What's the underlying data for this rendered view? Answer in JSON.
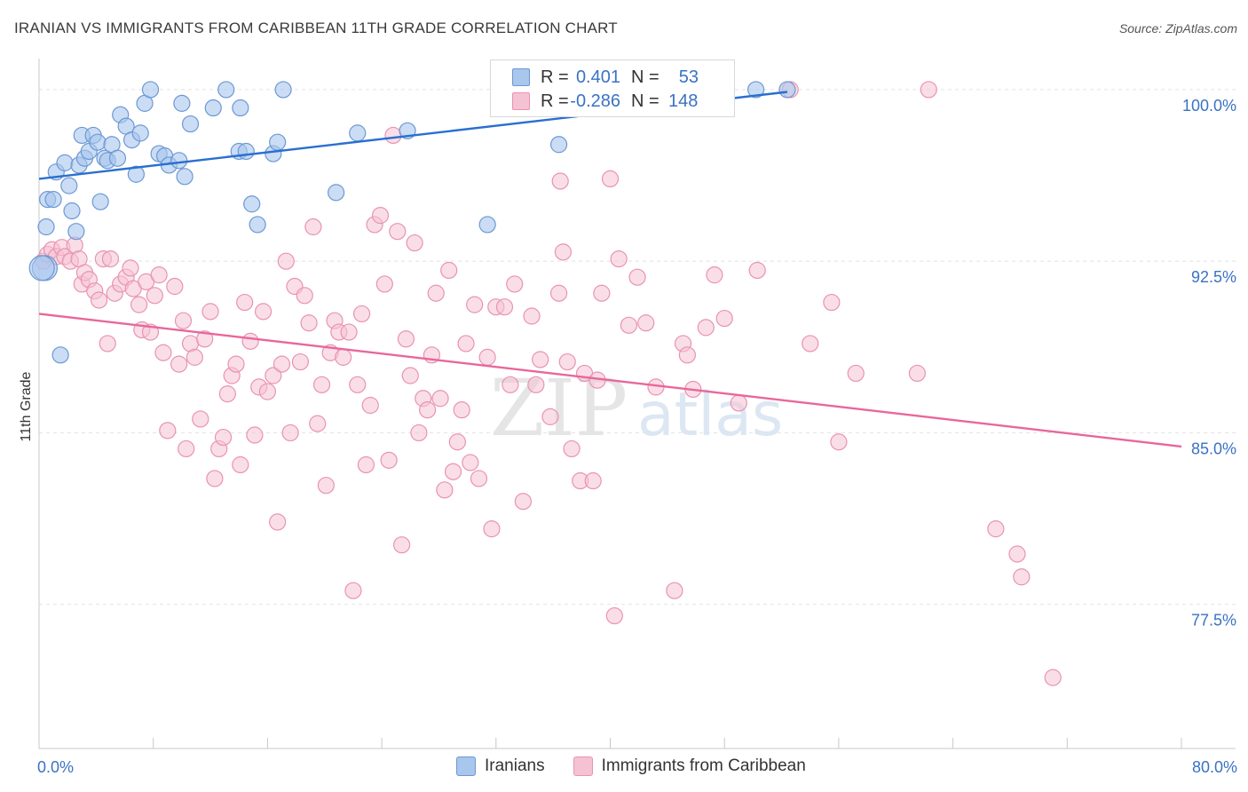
{
  "header": {
    "title": "IRANIAN VS IMMIGRANTS FROM CARIBBEAN 11TH GRADE CORRELATION CHART",
    "source": "Source: ZipAtlas.com"
  },
  "colors": {
    "blue_fill": "#a9c6ec",
    "blue_stroke": "#6c98d4",
    "blue_line": "#2a6fd0",
    "pink_fill": "#f5c2d3",
    "pink_stroke": "#e993b0",
    "pink_line": "#e8679a",
    "tick_label": "#3a72c4",
    "grid": "#e2e2e2"
  },
  "legend": {
    "rows": [
      {
        "r_label": "R =",
        "r_value": "0.401",
        "n_label": "N =",
        "n_value": "53"
      },
      {
        "r_label": "R =",
        "r_value": "-0.286",
        "n_label": "N =",
        "n_value": "148"
      }
    ]
  },
  "bottom_legend": {
    "items": [
      {
        "label": "Iranians"
      },
      {
        "label": "Immigrants from Caribbean"
      }
    ]
  },
  "watermark": {
    "part1": "ZIP",
    "part2": "atlas"
  },
  "chart_data": {
    "type": "scatter",
    "title": "IRANIAN VS IMMIGRANTS FROM CARIBBEAN 11TH GRADE CORRELATION CHART",
    "xlabel": "",
    "ylabel": "11th Grade",
    "xlim": [
      0,
      80
    ],
    "ylim": [
      71.2,
      101.2
    ],
    "x_tick_labels": [
      "0.0%",
      "80.0%"
    ],
    "y_ticks": [
      77.5,
      85.0,
      92.5,
      100.0
    ],
    "y_tick_labels": [
      "77.5%",
      "85.0%",
      "92.5%",
      "100.0%"
    ],
    "grid": true,
    "legend_position": "top-center",
    "series": [
      {
        "name": "Iranians",
        "r": 0.401,
        "n": 53,
        "trend": {
          "x": [
            0,
            52.4
          ],
          "y": [
            96.1,
            99.9
          ]
        },
        "points": [
          [
            0.4,
            92.2
          ],
          [
            0.5,
            94.0
          ],
          [
            0.6,
            95.2
          ],
          [
            1.0,
            95.2
          ],
          [
            1.2,
            96.4
          ],
          [
            1.8,
            96.8
          ],
          [
            2.1,
            95.8
          ],
          [
            2.3,
            94.7
          ],
          [
            2.6,
            93.8
          ],
          [
            2.8,
            96.7
          ],
          [
            3.0,
            98.0
          ],
          [
            3.2,
            97.0
          ],
          [
            3.5,
            97.3
          ],
          [
            3.8,
            98.0
          ],
          [
            4.1,
            97.7
          ],
          [
            4.3,
            95.1
          ],
          [
            4.6,
            97.0
          ],
          [
            4.8,
            96.9
          ],
          [
            5.1,
            97.6
          ],
          [
            5.5,
            97.0
          ],
          [
            5.7,
            98.9
          ],
          [
            6.1,
            98.4
          ],
          [
            6.5,
            97.8
          ],
          [
            6.8,
            96.3
          ],
          [
            7.1,
            98.1
          ],
          [
            7.4,
            99.4
          ],
          [
            7.8,
            100.0
          ],
          [
            8.4,
            97.2
          ],
          [
            8.8,
            97.1
          ],
          [
            9.1,
            96.7
          ],
          [
            9.8,
            96.9
          ],
          [
            10.0,
            99.4
          ],
          [
            10.2,
            96.2
          ],
          [
            10.6,
            98.5
          ],
          [
            12.2,
            99.2
          ],
          [
            13.1,
            100.0
          ],
          [
            14.0,
            97.3
          ],
          [
            14.1,
            99.2
          ],
          [
            14.5,
            97.3
          ],
          [
            14.9,
            95.0
          ],
          [
            15.3,
            94.1
          ],
          [
            16.4,
            97.2
          ],
          [
            16.7,
            97.7
          ],
          [
            17.1,
            100.0
          ],
          [
            20.8,
            95.5
          ],
          [
            22.3,
            98.1
          ],
          [
            25.8,
            98.2
          ],
          [
            31.4,
            94.1
          ],
          [
            36.4,
            97.6
          ],
          [
            50.2,
            100.0
          ],
          [
            52.4,
            100.0
          ],
          [
            1.5,
            88.4
          ],
          [
            0.2,
            92.2
          ]
        ]
      },
      {
        "name": "Immigrants from Caribbean",
        "r": -0.286,
        "n": 148,
        "trend": {
          "x": [
            0,
            80
          ],
          "y": [
            90.2,
            84.4
          ]
        },
        "points": [
          [
            0.3,
            92.5
          ],
          [
            0.6,
            92.8
          ],
          [
            0.9,
            93.0
          ],
          [
            1.2,
            92.7
          ],
          [
            1.6,
            93.1
          ],
          [
            1.8,
            92.7
          ],
          [
            2.2,
            92.5
          ],
          [
            2.5,
            93.2
          ],
          [
            2.8,
            92.6
          ],
          [
            3.0,
            91.5
          ],
          [
            3.2,
            92.0
          ],
          [
            3.5,
            91.7
          ],
          [
            3.9,
            91.2
          ],
          [
            4.2,
            90.8
          ],
          [
            4.5,
            92.6
          ],
          [
            4.8,
            88.9
          ],
          [
            5.0,
            92.6
          ],
          [
            5.3,
            91.1
          ],
          [
            5.7,
            91.5
          ],
          [
            6.1,
            91.8
          ],
          [
            6.4,
            92.2
          ],
          [
            6.6,
            91.3
          ],
          [
            7.0,
            90.6
          ],
          [
            7.2,
            89.5
          ],
          [
            7.5,
            91.6
          ],
          [
            7.8,
            89.4
          ],
          [
            8.1,
            91.0
          ],
          [
            8.4,
            91.9
          ],
          [
            8.7,
            88.5
          ],
          [
            9.0,
            85.1
          ],
          [
            9.5,
            91.4
          ],
          [
            9.8,
            88.0
          ],
          [
            10.1,
            89.9
          ],
          [
            10.3,
            84.3
          ],
          [
            10.6,
            88.9
          ],
          [
            10.9,
            88.3
          ],
          [
            11.3,
            85.6
          ],
          [
            11.6,
            89.1
          ],
          [
            12.0,
            90.3
          ],
          [
            12.3,
            83.0
          ],
          [
            12.6,
            84.3
          ],
          [
            12.9,
            84.8
          ],
          [
            13.2,
            86.7
          ],
          [
            13.5,
            87.5
          ],
          [
            13.8,
            88.0
          ],
          [
            14.1,
            83.6
          ],
          [
            14.4,
            90.7
          ],
          [
            14.8,
            89.0
          ],
          [
            15.1,
            84.9
          ],
          [
            15.4,
            87.0
          ],
          [
            15.7,
            90.3
          ],
          [
            16.0,
            86.8
          ],
          [
            16.4,
            87.5
          ],
          [
            16.7,
            81.1
          ],
          [
            17.0,
            88.0
          ],
          [
            17.3,
            92.5
          ],
          [
            17.6,
            85.0
          ],
          [
            17.9,
            91.4
          ],
          [
            18.3,
            88.1
          ],
          [
            18.6,
            91.0
          ],
          [
            18.9,
            89.8
          ],
          [
            19.2,
            94.0
          ],
          [
            19.5,
            85.4
          ],
          [
            19.8,
            87.1
          ],
          [
            20.1,
            82.7
          ],
          [
            20.4,
            88.5
          ],
          [
            20.7,
            89.9
          ],
          [
            21.0,
            89.4
          ],
          [
            21.3,
            88.3
          ],
          [
            21.7,
            89.4
          ],
          [
            22.0,
            78.1
          ],
          [
            22.3,
            87.1
          ],
          [
            22.6,
            90.2
          ],
          [
            22.9,
            83.6
          ],
          [
            23.2,
            86.2
          ],
          [
            23.5,
            94.1
          ],
          [
            23.9,
            94.5
          ],
          [
            24.2,
            91.5
          ],
          [
            24.5,
            83.8
          ],
          [
            24.8,
            98.0
          ],
          [
            25.1,
            93.8
          ],
          [
            25.4,
            80.1
          ],
          [
            25.7,
            89.1
          ],
          [
            26.0,
            87.5
          ],
          [
            26.3,
            93.3
          ],
          [
            26.6,
            85.0
          ],
          [
            26.9,
            86.5
          ],
          [
            27.2,
            86.0
          ],
          [
            27.5,
            88.4
          ],
          [
            27.8,
            91.1
          ],
          [
            28.1,
            86.5
          ],
          [
            28.4,
            82.5
          ],
          [
            28.7,
            92.1
          ],
          [
            29.0,
            83.3
          ],
          [
            29.3,
            84.6
          ],
          [
            29.6,
            86.0
          ],
          [
            29.9,
            88.9
          ],
          [
            30.2,
            83.7
          ],
          [
            30.5,
            90.6
          ],
          [
            30.8,
            83.0
          ],
          [
            31.4,
            88.3
          ],
          [
            31.7,
            80.8
          ],
          [
            32.0,
            90.5
          ],
          [
            32.6,
            90.5
          ],
          [
            33.0,
            87.1
          ],
          [
            33.3,
            91.5
          ],
          [
            33.9,
            82.0
          ],
          [
            34.5,
            90.1
          ],
          [
            34.8,
            87.1
          ],
          [
            35.1,
            88.2
          ],
          [
            35.8,
            85.7
          ],
          [
            36.4,
            91.1
          ],
          [
            36.7,
            92.9
          ],
          [
            37.0,
            88.1
          ],
          [
            37.3,
            84.3
          ],
          [
            37.9,
            82.9
          ],
          [
            38.2,
            87.6
          ],
          [
            38.8,
            82.9
          ],
          [
            39.1,
            87.3
          ],
          [
            39.4,
            91.1
          ],
          [
            40.0,
            96.1
          ],
          [
            40.3,
            77.0
          ],
          [
            40.6,
            92.6
          ],
          [
            41.3,
            89.7
          ],
          [
            41.9,
            91.8
          ],
          [
            42.5,
            89.8
          ],
          [
            43.2,
            87.0
          ],
          [
            44.5,
            78.1
          ],
          [
            45.1,
            88.9
          ],
          [
            45.4,
            88.4
          ],
          [
            45.8,
            86.9
          ],
          [
            46.7,
            89.6
          ],
          [
            47.3,
            91.9
          ],
          [
            48.0,
            90.0
          ],
          [
            49.0,
            86.3
          ],
          [
            50.3,
            92.1
          ],
          [
            54.0,
            88.9
          ],
          [
            55.5,
            90.7
          ],
          [
            56.0,
            84.6
          ],
          [
            57.2,
            87.6
          ],
          [
            61.5,
            87.6
          ],
          [
            62.3,
            100.0
          ],
          [
            67.0,
            80.8
          ],
          [
            68.5,
            79.7
          ],
          [
            68.8,
            78.7
          ],
          [
            71.0,
            74.3
          ],
          [
            52.6,
            100.0
          ],
          [
            36.5,
            96.0
          ]
        ]
      }
    ]
  }
}
